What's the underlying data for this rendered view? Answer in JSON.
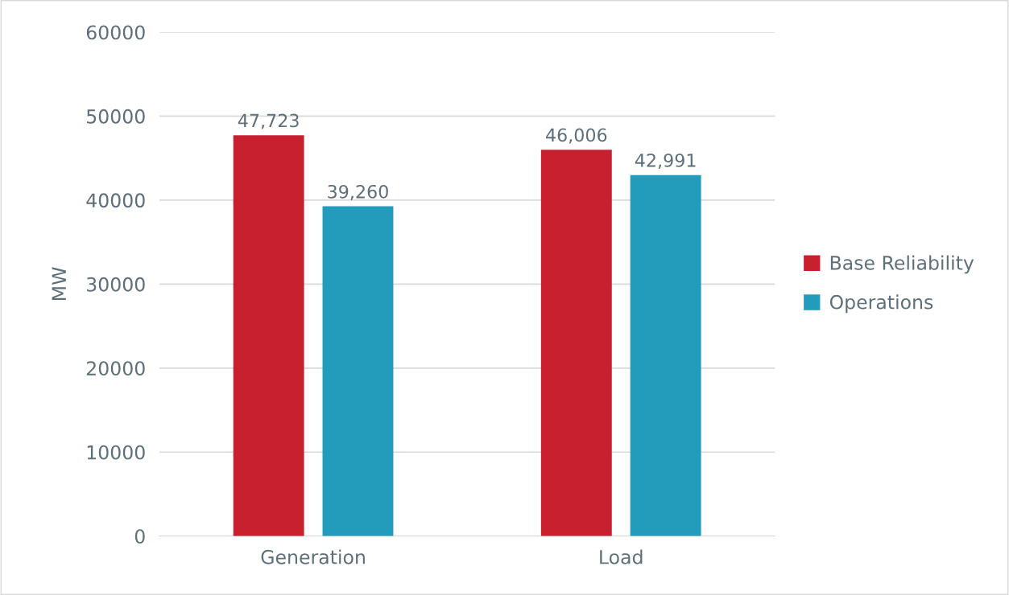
{
  "chart_data": {
    "type": "bar",
    "ylabel": "MW",
    "categories": [
      "Generation",
      "Load"
    ],
    "series": [
      {
        "name": "Base Reliability",
        "color": "#c8202f",
        "values": [
          47723,
          46006
        ],
        "value_labels": [
          "47,723",
          "46,006"
        ]
      },
      {
        "name": "Operations",
        "color": "#239bbb",
        "values": [
          39260,
          42991
        ],
        "value_labels": [
          "39,260",
          "42,991"
        ]
      }
    ],
    "ylim": [
      0,
      60000
    ],
    "yticks": [
      0,
      10000,
      20000,
      30000,
      40000,
      50000,
      60000
    ],
    "grid": "y",
    "legend": "right"
  }
}
